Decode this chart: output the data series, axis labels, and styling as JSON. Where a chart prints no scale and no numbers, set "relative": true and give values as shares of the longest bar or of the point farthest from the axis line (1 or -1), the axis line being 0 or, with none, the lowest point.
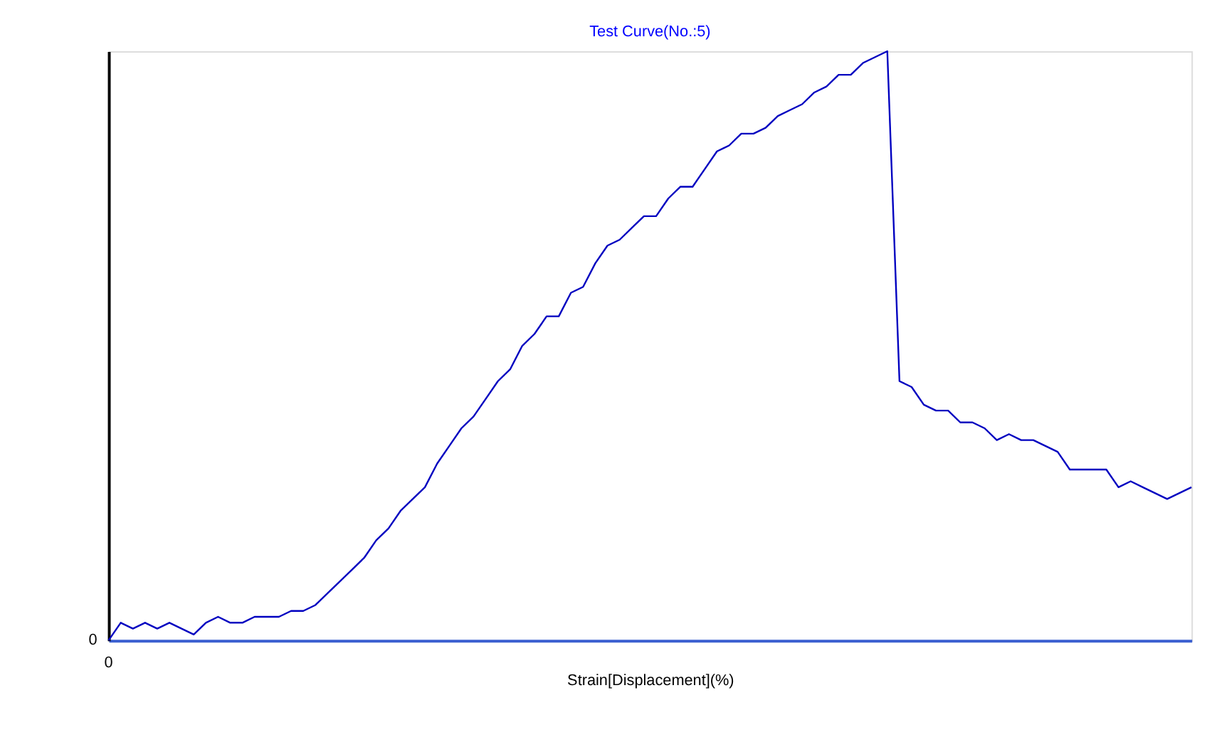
{
  "chart_data": {
    "type": "line",
    "title": "Test Curve(No.:5)",
    "xlabel": "Strain[Displacement](%)",
    "relative": true,
    "grid": false,
    "marker": "none",
    "line_style": "solid",
    "annotations": [
      "0",
      "0"
    ],
    "categories": [
      null,
      null,
      null,
      null,
      null,
      null,
      null,
      null,
      null,
      null,
      null,
      null,
      null,
      null,
      null,
      null,
      null,
      null,
      null,
      null,
      null,
      null,
      null,
      null,
      null,
      null,
      null,
      null,
      null,
      null,
      null,
      null,
      null,
      null,
      null,
      null,
      null,
      null,
      null,
      null,
      null,
      null,
      null,
      null,
      null,
      null,
      null,
      null,
      null,
      null,
      null,
      null,
      null,
      null,
      null,
      null,
      null,
      null,
      null,
      null,
      null,
      null,
      null,
      null,
      null,
      null,
      null,
      null,
      null,
      null,
      null,
      null,
      null,
      null,
      null,
      null,
      null,
      null,
      null,
      null,
      null,
      null,
      null,
      null,
      null,
      null,
      null,
      null,
      null,
      null
    ],
    "series": [
      {
        "color": "#0000c0",
        "values": [
          0,
          0.03,
          0.02,
          0.03,
          0.02,
          0.03,
          0.02,
          0.01,
          0.03,
          0.04,
          0.03,
          0.03,
          0.04,
          0.04,
          0.04,
          0.05,
          0.05,
          0.06,
          0.08,
          0.1,
          0.12,
          0.14,
          0.17,
          0.19,
          0.22,
          0.24,
          0.26,
          0.3,
          0.33,
          0.36,
          0.38,
          0.41,
          0.44,
          0.46,
          0.5,
          0.52,
          0.55,
          0.55,
          0.59,
          0.6,
          0.64,
          0.67,
          0.68,
          0.7,
          0.72,
          0.72,
          0.75,
          0.77,
          0.77,
          0.8,
          0.83,
          0.84,
          0.86,
          0.86,
          0.87,
          0.89,
          0.9,
          0.91,
          0.93,
          0.94,
          0.96,
          0.96,
          0.98,
          0.99,
          1,
          0.44,
          0.43,
          0.4,
          0.39,
          0.39,
          0.37,
          0.37,
          0.36,
          0.34,
          0.35,
          0.34,
          0.34,
          0.33,
          0.32,
          0.29,
          0.29,
          0.29,
          0.29,
          0.26,
          0.27,
          0.26,
          0.25,
          0.24,
          0.25,
          0.26
        ]
      }
    ]
  }
}
